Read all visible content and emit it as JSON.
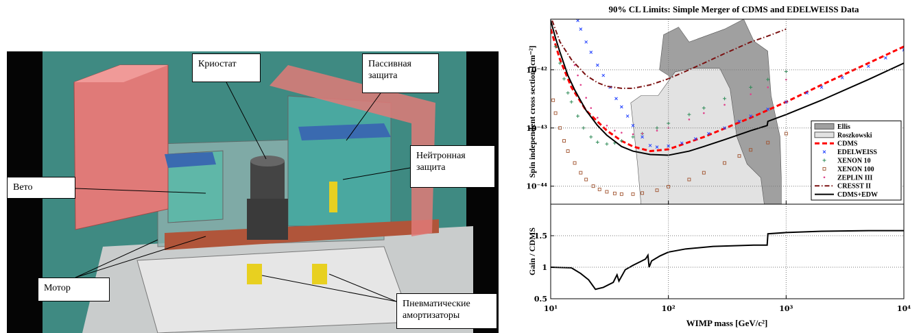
{
  "figure": {
    "labels": [
      "Криостат",
      "Пассивная защита",
      "Нейтронная защита",
      "Вето",
      "Мотор",
      "Пневматические амортизаторы"
    ]
  },
  "chart_data": [
    {
      "type": "line",
      "title": "90% CL Limits: Simple Merger of CDMS and EDELWEISS Data",
      "ylabel": "Spin independent cross section [cm⁻²]",
      "xlog": true,
      "ylog": true,
      "grid": true,
      "legend": "lower right",
      "xlim": [
        10,
        10000
      ],
      "ylim": [
        4.9e-45,
        7.4e-42
      ],
      "xticks": [
        10,
        100,
        1000,
        10000
      ],
      "yticks": [
        {
          "value": 1e-44,
          "label": "10⁻⁴⁴"
        },
        {
          "value": 1e-43,
          "label": "10⁻⁴³"
        },
        {
          "value": 1e-42,
          "label": "10⁻⁴²"
        }
      ],
      "series": [
        {
          "name": "Ellis",
          "color": "#a0a0a0",
          "style": "region",
          "x": [
            84,
            91,
            122,
            150,
            300,
            436,
            533,
            697,
            745,
            887,
            910,
            910,
            600,
            400,
            250,
            150,
            100
          ],
          "values": [
            1e-42,
            4e-42,
            5.4e-42,
            3e-42,
            5e-42,
            7.4e-42,
            3.1e-42,
            2.1e-42,
            3.6e-43,
            7.1e-44,
            1.4e-44,
            4.9e-45,
            4.9e-45,
            2e-44,
            8e-44,
            3e-43,
            8e-43
          ]
        },
        {
          "name": "Roszkowski",
          "color": "#e2e2e2",
          "style": "region",
          "x": [
            58.5,
            54.7,
            47.9,
            58.5,
            81.8,
            114,
            160,
            273,
            334,
            381,
            466,
            609,
            652
          ],
          "values": [
            4.9e-45,
            2.4e-44,
            2.7e-43,
            3.6e-43,
            3.6e-43,
            9.2e-43,
            1.06e-42,
            1.06e-42,
            4.7e-43,
            7.1e-44,
            2.4e-44,
            1.4e-44,
            4.9e-45
          ]
        },
        {
          "name": "CDMS",
          "color": "#ff0000",
          "style": "dashed",
          "x": [
            10,
            12,
            15,
            20,
            30,
            40,
            50,
            70,
            100,
            200,
            500,
            1000,
            2000,
            5000,
            10000
          ],
          "values": [
            5e-42,
            1.5e-42,
            5e-43,
            2e-43,
            9e-44,
            6e-44,
            4.8e-44,
            4e-44,
            4.3e-44,
            7e-44,
            1.5e-43,
            2.8e-43,
            5.5e-43,
            1.3e-42,
            2.5e-42
          ]
        },
        {
          "name": "EDELWEISS",
          "color": "#2040ff",
          "style": "marker",
          "marker": "x",
          "x": [
            17,
            18,
            20,
            22,
            25,
            28,
            32,
            36,
            40,
            45,
            50,
            60,
            70,
            80,
            100,
            130,
            170,
            220,
            300,
            400,
            500,
            700,
            1000,
            1500,
            2000,
            3000,
            5000,
            7000,
            10000
          ],
          "values": [
            7e-42,
            5e-42,
            3e-42,
            2e-42,
            1.2e-42,
            8e-43,
            5e-43,
            3.2e-43,
            2.3e-43,
            1.6e-43,
            1.1e-43,
            7e-44,
            5e-44,
            4.7e-44,
            4.9e-44,
            5.5e-44,
            6.5e-44,
            8e-44,
            1e-43,
            1.3e-43,
            1.6e-43,
            2.1e-43,
            2.8e-43,
            4e-43,
            5e-43,
            7.3e-43,
            1.15e-42,
            1.6e-42,
            2.2e-42
          ]
        },
        {
          "name": "XENON 10",
          "color": "#2e8b57",
          "style": "marker",
          "marker": "+",
          "x": [
            11,
            12,
            13,
            14,
            15,
            17,
            19,
            22,
            25,
            30,
            35,
            40,
            50,
            60,
            80,
            100,
            150,
            200,
            300,
            500,
            700,
            1000
          ],
          "values": [
            2.5e-42,
            1.3e-42,
            7e-43,
            4e-43,
            2.8e-43,
            1.6e-43,
            1e-43,
            7e-44,
            5.7e-44,
            5.3e-44,
            5.5e-44,
            6e-44,
            7e-44,
            8e-44,
            1e-43,
            1.2e-43,
            1.7e-43,
            2.2e-43,
            3.2e-43,
            5e-43,
            6.8e-43,
            9.3e-43
          ]
        },
        {
          "name": "XENON 100",
          "color": "#a0522d",
          "style": "marker",
          "marker": "square",
          "x": [
            10.5,
            11,
            12,
            13,
            14,
            16,
            18,
            20,
            23,
            26,
            30,
            35,
            40,
            50,
            60,
            80,
            100,
            150,
            200,
            300,
            400,
            500,
            700,
            1000
          ],
          "values": [
            3e-43,
            1.8e-43,
            1e-43,
            6e-44,
            4e-44,
            2.5e-44,
            1.7e-44,
            1.3e-44,
            1e-44,
            8.8e-45,
            8e-45,
            7.5e-45,
            7.3e-45,
            7.3e-45,
            7.6e-45,
            8.5e-45,
            9.8e-45,
            1.3e-44,
            1.7e-44,
            2.5e-44,
            3.3e-44,
            4.2e-44,
            5.6e-44,
            8e-44
          ]
        },
        {
          "name": "ZEPLIN III",
          "color": "#e0408a",
          "style": "marker",
          "marker": "dot",
          "x": [
            16,
            17,
            18,
            20,
            22,
            25,
            30,
            35,
            40,
            50,
            60,
            80,
            100,
            150,
            200,
            300,
            500,
            700,
            1000
          ],
          "values": [
            1.2e-42,
            8e-43,
            5.5e-43,
            3.3e-43,
            2.2e-43,
            1.5e-43,
            1.1e-43,
            9e-44,
            8.3e-44,
            7.8e-44,
            8e-44,
            9e-44,
            1e-43,
            1.4e-43,
            1.8e-43,
            2.5e-43,
            3.8e-43,
            5e-43,
            6.8e-43
          ]
        },
        {
          "name": "CRESST II",
          "color": "#7a1010",
          "style": "dashdot",
          "x": [
            10.3,
            12,
            15,
            20,
            25,
            30,
            40,
            50,
            70,
            100,
            150,
            200,
            300,
            500,
            700,
            1000
          ],
          "values": [
            7e-42,
            3e-42,
            1.5e-42,
            8e-43,
            6e-43,
            5.2e-43,
            4.8e-43,
            4.8e-43,
            5.5e-43,
            7e-43,
            1e-42,
            1.3e-42,
            1.9e-42,
            3e-42,
            3.8e-42,
            5e-42
          ]
        },
        {
          "name": "CDMS+EDW",
          "color": "#000000",
          "style": "solid",
          "x": [
            10,
            11,
            12,
            14,
            16,
            20,
            25,
            30,
            40,
            50,
            70,
            100,
            150,
            200,
            300,
            500,
            690,
            700,
            1000,
            2000,
            5000,
            10000
          ],
          "values": [
            7e-42,
            3.5e-42,
            2e-42,
            8e-43,
            4.5e-43,
            2e-43,
            1.1e-43,
            7.5e-44,
            4.8e-44,
            4e-44,
            3.5e-44,
            3.4e-44,
            4e-44,
            4.8e-44,
            6.3e-44,
            9e-44,
            1.1e-43,
            1.3e-43,
            1.7e-43,
            3e-43,
            6.8e-43,
            1.3e-42
          ]
        }
      ]
    },
    {
      "type": "line",
      "ylabel": "Gain / CDMS",
      "xlabel": "WIMP mass [GeV/c²]",
      "xlog": true,
      "ylog": false,
      "grid": true,
      "xlim": [
        10,
        10000
      ],
      "ylim": [
        0.5,
        2
      ],
      "xticks": [
        {
          "value": 10,
          "label": "10¹"
        },
        {
          "value": 100,
          "label": "10²"
        },
        {
          "value": 1000,
          "label": "10³"
        },
        {
          "value": 10000,
          "label": "10⁴"
        }
      ],
      "yticks": [
        0.5,
        1,
        1.5
      ],
      "series": [
        {
          "color": "#000000",
          "style": "solid",
          "x": [
            10,
            15,
            18,
            21,
            24,
            28,
            34,
            36.6,
            38,
            43,
            50,
            58,
            64,
            67,
            68.6,
            72,
            85,
            100,
            140,
            240,
            530,
            690,
            700,
            1000,
            2000,
            5000,
            10000
          ],
          "values": [
            1.0,
            0.99,
            0.9,
            0.8,
            0.65,
            0.68,
            0.76,
            0.88,
            0.78,
            0.96,
            1.03,
            1.09,
            1.13,
            1.19,
            1.0,
            1.1,
            1.18,
            1.24,
            1.29,
            1.33,
            1.35,
            1.35,
            1.53,
            1.55,
            1.57,
            1.58,
            1.58
          ]
        }
      ]
    }
  ]
}
